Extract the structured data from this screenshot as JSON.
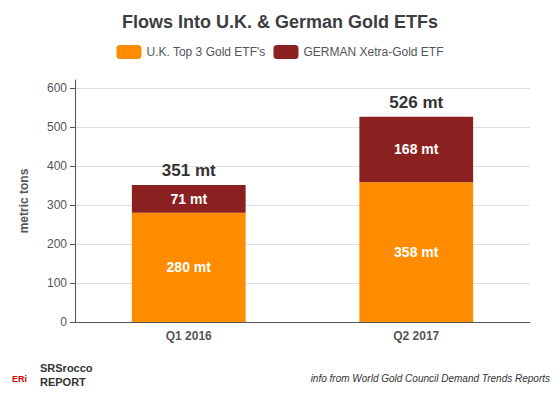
{
  "chart_data": {
    "type": "bar",
    "title": "Flows Into U.K. & German Gold ETFs",
    "ylabel": "metric tons",
    "categories": [
      "Q1 2016",
      "Q2 2017"
    ],
    "stacked": true,
    "data_labels": true,
    "series": [
      {
        "name": "U.K. Top 3 Gold ETF's",
        "color": "#FF8C00",
        "values": [
          280,
          358
        ],
        "value_labels": [
          "280 mt",
          "358 mt"
        ]
      },
      {
        "name": "GERMAN Xetra-Gold ETF",
        "color": "#8B2020",
        "values": [
          71,
          168
        ],
        "value_labels": [
          "71 mt",
          "168 mt"
        ]
      }
    ],
    "totals": [
      351,
      526
    ],
    "total_labels": [
      "351 mt",
      "526 mt"
    ],
    "ylim": [
      0,
      620
    ],
    "yticks": [
      0,
      100,
      200,
      300,
      400,
      500,
      600
    ],
    "grid": true,
    "annotations": [
      "ERi",
      "SRSrocco",
      "REPORT",
      "info from World Gold Council Demand Trends Reports"
    ]
  }
}
